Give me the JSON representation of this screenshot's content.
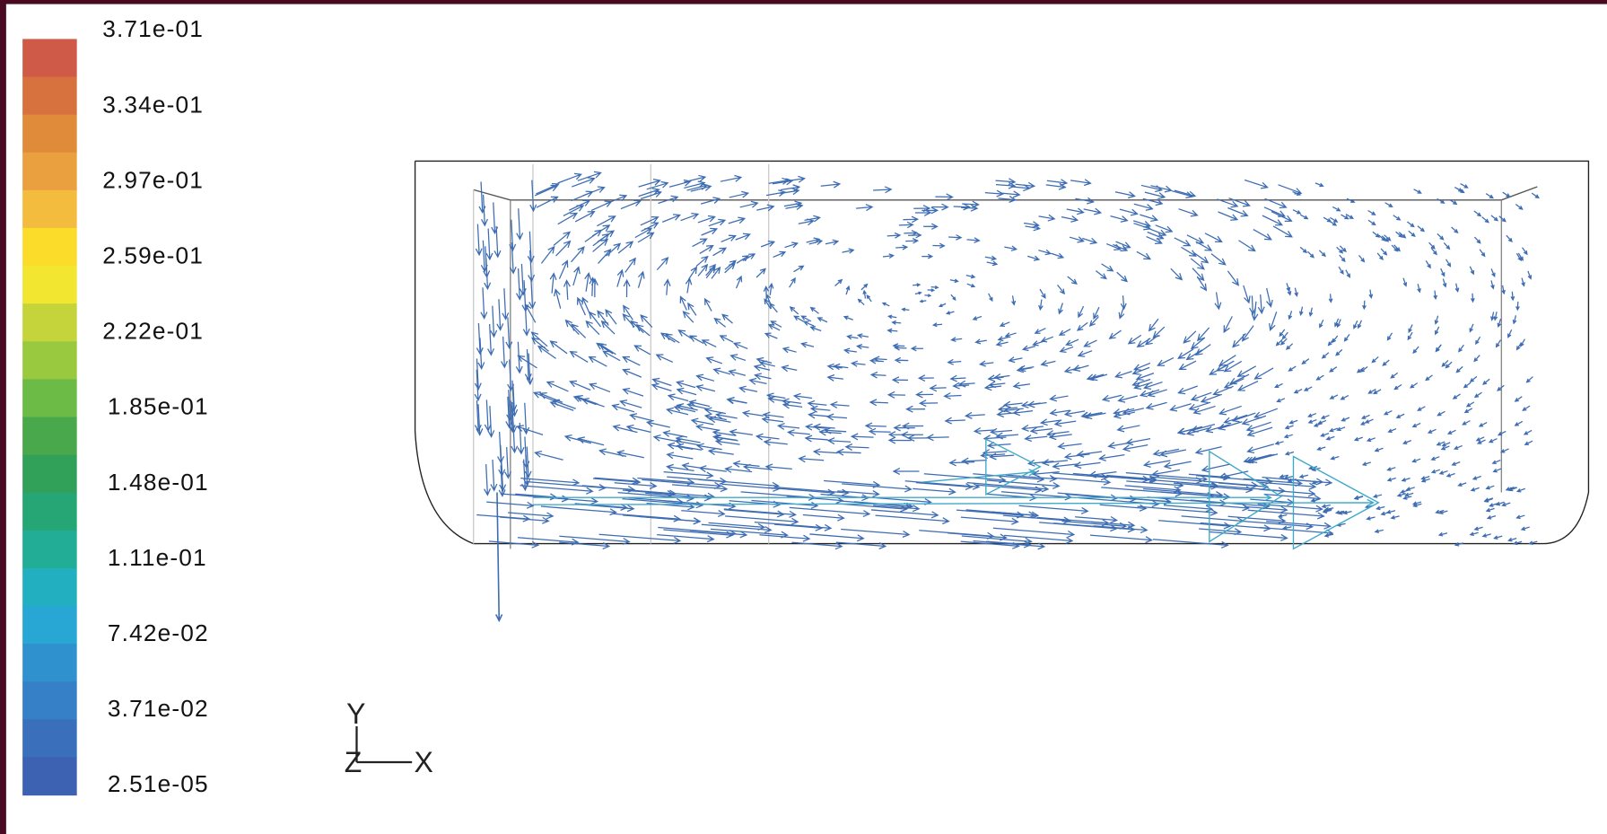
{
  "colorbar": {
    "labels": [
      "3.71e-01",
      "3.34e-01",
      "2.97e-01",
      "2.59e-01",
      "2.22e-01",
      "1.85e-01",
      "1.48e-01",
      "1.11e-01",
      "7.42e-02",
      "3.71e-02",
      "2.51e-05"
    ]
  },
  "axes": {
    "y": "Y",
    "z": "Z",
    "x": "X"
  }
}
